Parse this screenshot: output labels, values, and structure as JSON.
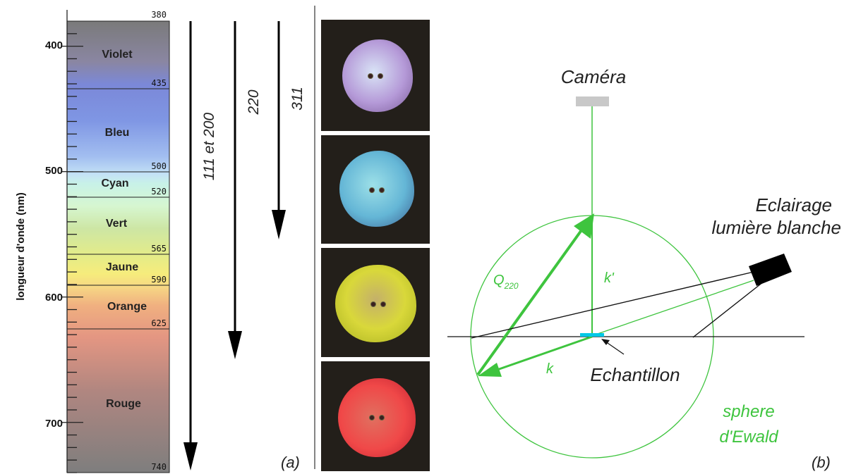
{
  "panel_a": {
    "axis_label": "longueur d'onde (nm)",
    "major_ticks": [
      "400",
      "500",
      "600",
      "700"
    ],
    "bands": [
      {
        "name": "Violet",
        "boundary_label": "435"
      },
      {
        "name": "Bleu",
        "boundary_label": "500"
      },
      {
        "name": "Cyan",
        "boundary_label": "520"
      },
      {
        "name": "Vert",
        "boundary_label": "565"
      },
      {
        "name": "Jaune",
        "boundary_label": "590"
      },
      {
        "name": "Orange",
        "boundary_label": "625"
      },
      {
        "name": "Rouge",
        "boundary_label": "740"
      }
    ],
    "top_label": "380",
    "arrows": [
      "111 et 200",
      "220",
      "311"
    ],
    "tag": "(a)",
    "photos": [
      {
        "name": "violet-sample-photo",
        "color": "#b59ad8"
      },
      {
        "name": "blue-sample-photo",
        "color": "#64b6d6"
      },
      {
        "name": "yellow-sample-photo",
        "color": "#d9d83a"
      },
      {
        "name": "red-sample-photo",
        "color": "#f04848"
      }
    ]
  },
  "panel_b": {
    "camera_label": "Caméra",
    "light_label_line1": "Eclairage",
    "light_label_line2": "lumière blanche",
    "q_label": "Q",
    "q_subscript": "220",
    "k_prime_label": "k'",
    "k_label": "k",
    "sample_label": "Echantillon",
    "sphere_label_line1": "sphere",
    "sphere_label_line2": "d'Ewald",
    "tag": "(b)",
    "colors": {
      "green": "#3ec43e",
      "camera": "#c8c8c8",
      "sample": "#00c8e6",
      "lamp": "#000000"
    }
  }
}
